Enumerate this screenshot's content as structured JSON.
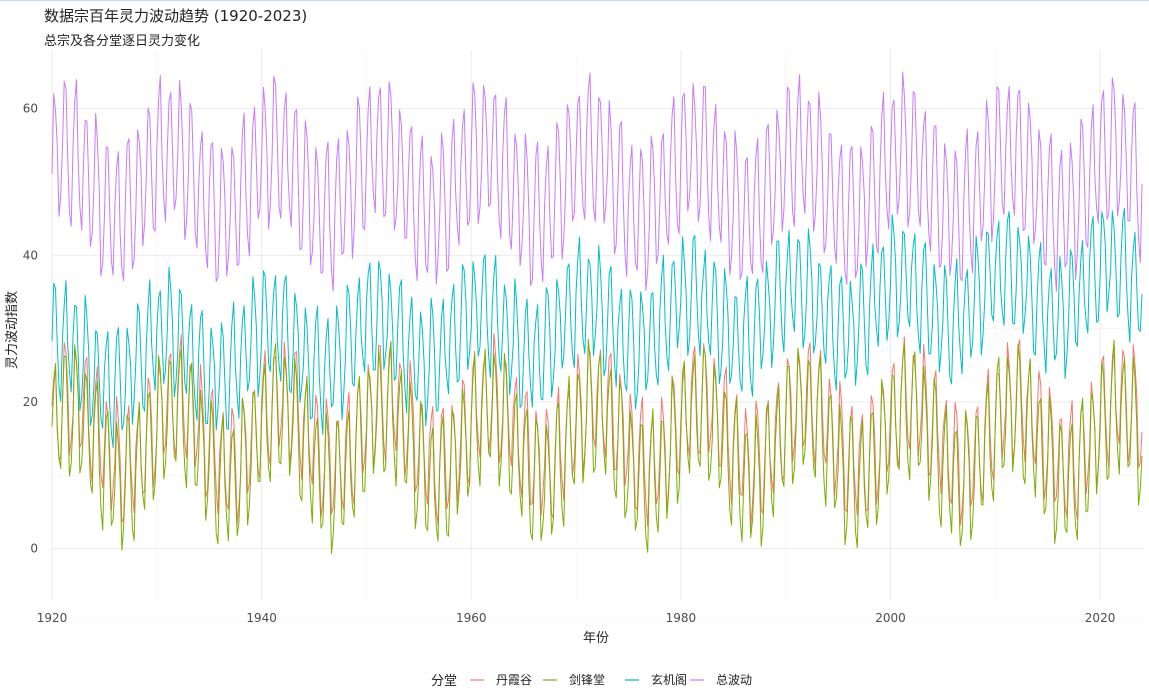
{
  "chart_data": {
    "type": "line",
    "title": "数据宗百年灵力波动趋势 (1920-2023)",
    "subtitle": "总宗及各分堂逐日灵力变化",
    "xlabel": "年份",
    "ylabel": "灵力波动指数",
    "xlim": [
      1920,
      2024
    ],
    "ylim": [
      -7,
      68
    ],
    "x_ticks": [
      1920,
      1940,
      1960,
      1980,
      2000,
      2020
    ],
    "y_ticks": [
      0,
      20,
      40,
      60
    ],
    "grid": true,
    "legend": {
      "title": "分堂",
      "position": "bottom",
      "entries": [
        "丹霞谷",
        "剑锋堂",
        "玄机阁",
        "总波动"
      ]
    },
    "series": [
      {
        "name": "丹霞谷",
        "color": "#F8766D",
        "annual_cycles_per_year": 1,
        "mean": 16,
        "amplitude": 7.5,
        "long_cycle_years": 10,
        "long_cycle_amplitude": 4.5,
        "min": -3,
        "max": 31
      },
      {
        "name": "剑锋堂",
        "color": "#7CAE00",
        "annual_cycles_per_year": 1,
        "mean": 14,
        "amplitude": 8.5,
        "long_cycle_years": 10,
        "long_cycle_amplitude": 5,
        "min": -4.5,
        "max": 29.5
      },
      {
        "name": "玄机阁",
        "color": "#00BFC4",
        "annual_cycles_per_year": 1,
        "mean": 28,
        "amplitude": 7.5,
        "trend_start": 25,
        "trend_end": 36,
        "long_cycle_years": 10,
        "long_cycle_amplitude": 3.5,
        "min": 11,
        "max": 48.5
      },
      {
        "name": "总波动",
        "color": "#C77CFF",
        "annual_cycles_per_year": 1,
        "mean": 50,
        "amplitude": 9.5,
        "long_cycle_years": 10,
        "long_cycle_amplitude": 4.5,
        "min": 33,
        "max": 65.5
      }
    ]
  }
}
